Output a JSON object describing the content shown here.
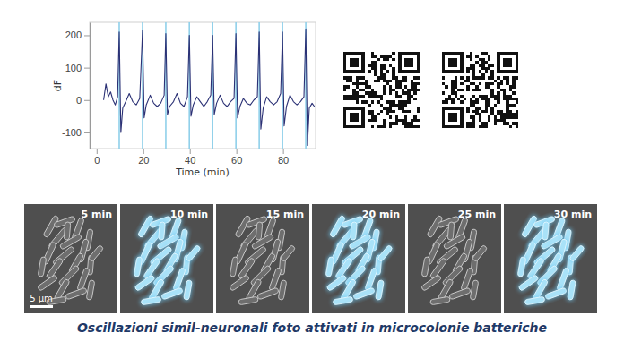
{
  "chart_data": {
    "type": "line",
    "x": [
      3,
      4,
      5,
      6,
      7,
      8,
      9,
      9.7,
      10.4,
      11.2,
      12.5,
      14,
      15.5,
      17,
      18.5,
      19.7,
      20.4,
      21.3,
      23,
      24.5,
      26,
      27.5,
      29,
      29.7,
      30.4,
      31.3,
      33,
      34.5,
      36,
      37.5,
      39,
      39.8,
      40.5,
      41.5,
      43,
      44.5,
      46,
      47.5,
      49,
      49.8,
      50.5,
      51.5,
      53,
      54.5,
      56,
      57.5,
      59,
      59.8,
      60.5,
      61.5,
      63,
      64.5,
      66,
      67.5,
      69,
      69.8,
      70.5,
      71.5,
      73,
      74.5,
      76,
      77.5,
      79,
      79.8,
      80.5,
      81.5,
      83,
      84.5,
      86,
      87.5,
      89,
      89.8,
      90.5,
      91.3,
      92.5,
      93.5
    ],
    "values": [
      0,
      50,
      10,
      25,
      0,
      -15,
      10,
      210,
      -100,
      -25,
      -5,
      20,
      -5,
      -15,
      5,
      215,
      -55,
      -15,
      15,
      -10,
      -20,
      -10,
      15,
      205,
      -45,
      -20,
      -5,
      20,
      -10,
      -20,
      10,
      200,
      -50,
      -15,
      10,
      -5,
      -20,
      -5,
      15,
      200,
      -45,
      -10,
      15,
      -10,
      -20,
      -5,
      5,
      205,
      -55,
      -20,
      5,
      -10,
      -15,
      0,
      10,
      210,
      -90,
      -25,
      10,
      -5,
      -15,
      -5,
      20,
      210,
      -80,
      -20,
      15,
      -5,
      -15,
      -5,
      10,
      220,
      -140,
      -25,
      -10,
      -20
    ],
    "color": "#2b3175",
    "xlabel": "Time (min)",
    "ylabel": "dF",
    "xlim": [
      -3,
      94
    ],
    "ylim": [
      -150,
      240
    ],
    "xticks": [
      0,
      20,
      40,
      60,
      80
    ],
    "yticks": [
      -100,
      0,
      100,
      200
    ],
    "spike_times": [
      9.7,
      19.7,
      29.7,
      39.8,
      49.8,
      59.8,
      69.8,
      79.8,
      89.8
    ]
  },
  "microscopy": {
    "panels": [
      {
        "label": "5 min",
        "fluorescent": false
      },
      {
        "label": "10 min",
        "fluorescent": true
      },
      {
        "label": "15 min",
        "fluorescent": false
      },
      {
        "label": "20 min",
        "fluorescent": true
      },
      {
        "label": "25 min",
        "fluorescent": false
      },
      {
        "label": "30 min",
        "fluorescent": true
      }
    ],
    "scale_bar": "5 μm"
  },
  "caption": "Oscillazioni simil-neuronali foto attivati in microcolonie batteriche"
}
